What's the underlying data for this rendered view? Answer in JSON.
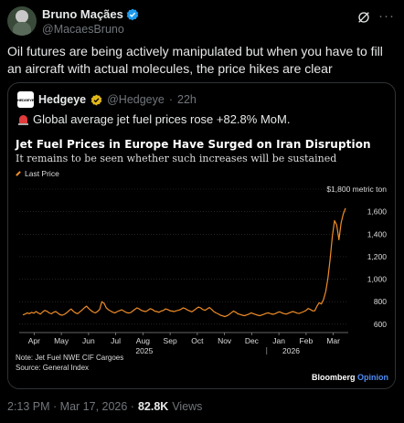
{
  "author": {
    "name": "Bruno Maçães",
    "handle": "@MacaesBruno"
  },
  "tweet_text": "Oil futures are being actively manipulated but when you have to fill an aircraft with actual molecules, the price hikes are clear",
  "quoted": {
    "avatar_text": "HEDGEYE",
    "name": "Hedgeye",
    "handle": "@Hedgeye",
    "time": "22h",
    "text": "Global average jet fuel prices rose +82.8% MoM."
  },
  "chart_data": {
    "type": "line",
    "title": "Jet Fuel Prices in Europe Have Surged on Iran Disruption",
    "subtitle": "It remains to be seen whether such increases will be sustained",
    "legend": [
      "Last Price"
    ],
    "unit_label": "$1,800 metric ton",
    "yticks": [
      "1,600",
      "1,400",
      "1,200",
      "1,000",
      "800",
      "600"
    ],
    "ylim": [
      550,
      1800
    ],
    "xticks": [
      "Apr",
      "May",
      "Jun",
      "Jul",
      "Aug",
      "Sep",
      "Oct",
      "Nov",
      "Dec",
      "Jan",
      "Feb",
      "Mar"
    ],
    "year_labels": [
      "2025",
      "2026"
    ],
    "series": [
      {
        "color": "#f08c28",
        "values": [
          682,
          690,
          700,
          694,
          705,
          698,
          712,
          700,
          690,
          708,
          722,
          715,
          700,
          692,
          706,
          712,
          698,
          684,
          680,
          688,
          702,
          720,
          735,
          715,
          700,
          694,
          710,
          726,
          745,
          760,
          740,
          722,
          708,
          700,
          712,
          730,
          800,
          785,
          745,
          728,
          716,
          706,
          700,
          712,
          720,
          728,
          716,
          705,
          700,
          702,
          716,
          732,
          745,
          736,
          722,
          716,
          712,
          724,
          738,
          730,
          716,
          712,
          706,
          716,
          722,
          736,
          730,
          720,
          716,
          712,
          720,
          724,
          732,
          745,
          738,
          726,
          718,
          710,
          724,
          738,
          752,
          745,
          730,
          724,
          736,
          748,
          732,
          712,
          700,
          692,
          680,
          674,
          668,
          674,
          686,
          702,
          716,
          706,
          692,
          686,
          680,
          676,
          682,
          690,
          700,
          694,
          686,
          680,
          676,
          682,
          690,
          698,
          700,
          692,
          688,
          694,
          704,
          710,
          700,
          694,
          690,
          698,
          706,
          712,
          706,
          698,
          696,
          704,
          712,
          722,
          740,
          730,
          718,
          720,
          760,
          790,
          780,
          820,
          890,
          1010,
          1180,
          1380,
          1520,
          1480,
          1350,
          1500,
          1580,
          1630
        ]
      }
    ],
    "notes": [
      "Note: Jet Fuel NWE CIF Cargoes",
      "Source: General Index"
    ],
    "brand": "Bloomberg",
    "brand_suffix": "Opinion"
  },
  "footer": {
    "time": "2:13 PM · Mar 17, 2026 ·",
    "views_count": "82.8K",
    "views_label": "Views"
  },
  "colors": {
    "accent": "#1d9bf0",
    "line": "#f08c28",
    "brand_blue": "#4f8df5"
  }
}
